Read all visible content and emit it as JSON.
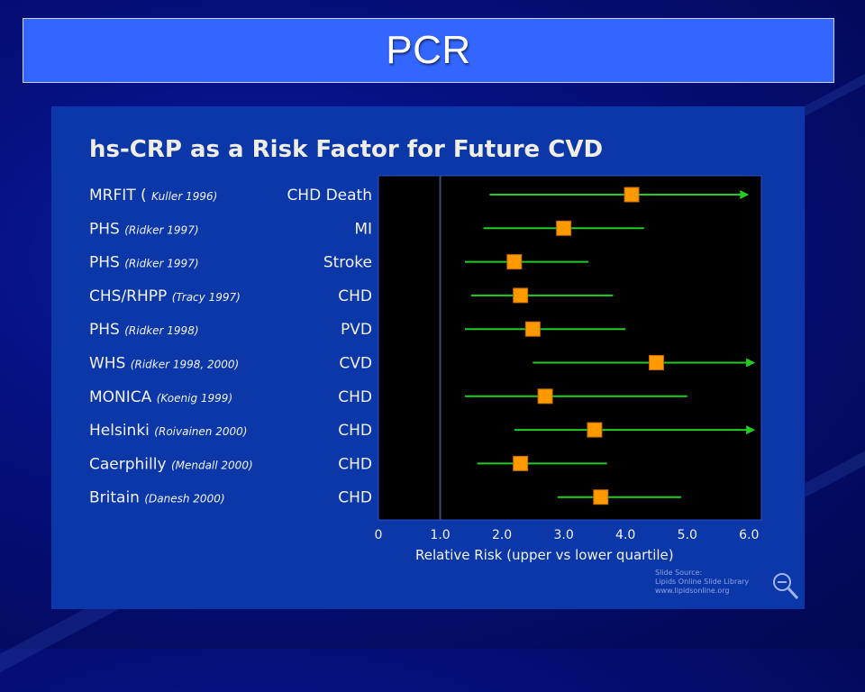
{
  "slide": {
    "title": "PCR"
  },
  "colors": {
    "background": "#050f7a",
    "title_bar": "#3366ff",
    "panel": "#0b37a8",
    "plot_area": "#000000",
    "ci_line": "#22cc22",
    "marker": "#ff9900"
  },
  "chart_data": {
    "type": "forest",
    "title": "hs-CRP as a Risk Factor for Future CVD",
    "xlabel": "Relative Risk (upper vs lower quartile)",
    "xlim": [
      0,
      6.2
    ],
    "reference_line": 1.0,
    "x_ticks": [
      "0",
      "1.0",
      "2.0",
      "3.0",
      "4.0",
      "5.0",
      "6.0"
    ],
    "rows": [
      {
        "study": "MRFIT (",
        "citation": "Kuller 1996)",
        "endpoint": "CHD Death",
        "rr": 4.1,
        "lower": 1.8,
        "upper": 6.0,
        "upper_truncated": true
      },
      {
        "study": "PHS",
        "citation": "(Ridker 1997)",
        "endpoint": "MI",
        "rr": 3.0,
        "lower": 1.7,
        "upper": 4.3,
        "upper_truncated": false
      },
      {
        "study": "PHS",
        "citation": "(Ridker 1997)",
        "endpoint": "Stroke",
        "rr": 2.2,
        "lower": 1.4,
        "upper": 3.4,
        "upper_truncated": false
      },
      {
        "study": "CHS/RHPP",
        "citation": "(Tracy 1997)",
        "endpoint": "CHD",
        "rr": 2.3,
        "lower": 1.5,
        "upper": 3.8,
        "upper_truncated": false
      },
      {
        "study": "PHS",
        "citation": "(Ridker 1998)",
        "endpoint": "PVD",
        "rr": 2.5,
        "lower": 1.4,
        "upper": 4.0,
        "upper_truncated": false
      },
      {
        "study": "WHS",
        "citation": "(Ridker 1998, 2000)",
        "endpoint": "CVD",
        "rr": 4.5,
        "lower": 2.5,
        "upper": 6.1,
        "upper_truncated": true
      },
      {
        "study": "MONICA",
        "citation": "(Koenig 1999)",
        "endpoint": "CHD",
        "rr": 2.7,
        "lower": 1.4,
        "upper": 5.0,
        "upper_truncated": false
      },
      {
        "study": "Helsinki",
        "citation": "(Roivainen 2000)",
        "endpoint": "CHD",
        "rr": 3.5,
        "lower": 2.2,
        "upper": 6.1,
        "upper_truncated": true
      },
      {
        "study": "Caerphilly",
        "citation": "(Mendall 2000)",
        "endpoint": "CHD",
        "rr": 2.3,
        "lower": 1.6,
        "upper": 3.7,
        "upper_truncated": false
      },
      {
        "study": "Britain",
        "citation": "(Danesh 2000)",
        "endpoint": "CHD",
        "rr": 3.6,
        "lower": 2.9,
        "upper": 4.9,
        "upper_truncated": false
      }
    ],
    "source_lines": [
      "Slide Source:",
      "Lipids Online Slide Library",
      "www.lipidsonline.org"
    ]
  },
  "icons": {
    "source_logo": "magnifier-minus-icon"
  }
}
